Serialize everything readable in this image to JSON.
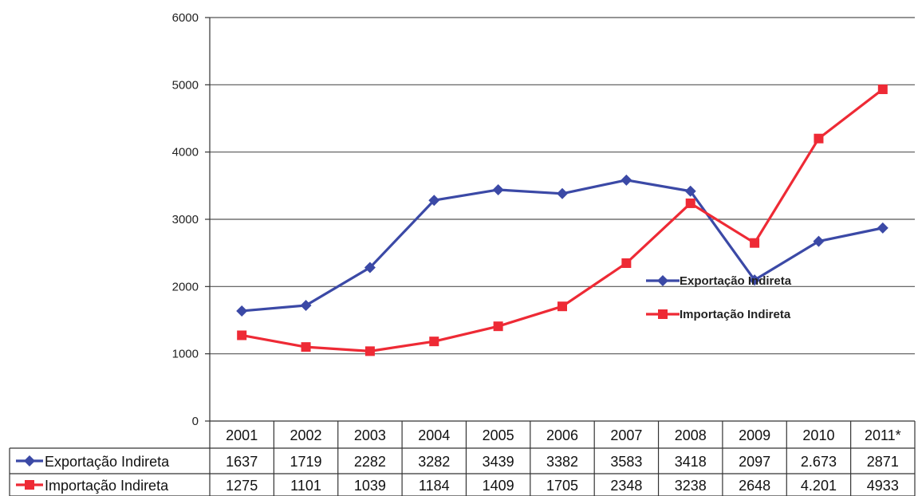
{
  "colors": {
    "series_1": "#3b49a6",
    "series_2": "#ee2a35",
    "grid": "#555555",
    "axis": "#333333",
    "table_border": "#333333"
  },
  "chart_data": {
    "type": "line",
    "title": "",
    "xlabel": "",
    "ylabel": "",
    "ylim": [
      0,
      6000
    ],
    "yticks": [
      0,
      1000,
      2000,
      3000,
      4000,
      5000,
      6000
    ],
    "grid": true,
    "legend_position": "center-right",
    "categories": [
      "2001",
      "2002",
      "2003",
      "2004",
      "2005",
      "2006",
      "2007",
      "2008",
      "2009",
      "2010",
      "2011*"
    ],
    "series": [
      {
        "name": "Exportação Indireta",
        "marker": "diamond",
        "values": [
          1637,
          1719,
          2282,
          3282,
          3439,
          3382,
          3583,
          3418,
          2097,
          2673,
          2871
        ],
        "table_values": [
          "1637",
          "1719",
          "2282",
          "3282",
          "3439",
          "3382",
          "3583",
          "3418",
          "2097",
          "2.673",
          "2871"
        ]
      },
      {
        "name": "Importação Indireta",
        "marker": "square",
        "values": [
          1275,
          1101,
          1039,
          1184,
          1409,
          1705,
          2348,
          3238,
          2648,
          4201,
          4933
        ],
        "table_values": [
          "1275",
          "1101",
          "1039",
          "1184",
          "1409",
          "1705",
          "2348",
          "3238",
          "2648",
          "4.201",
          "4933"
        ]
      }
    ]
  }
}
